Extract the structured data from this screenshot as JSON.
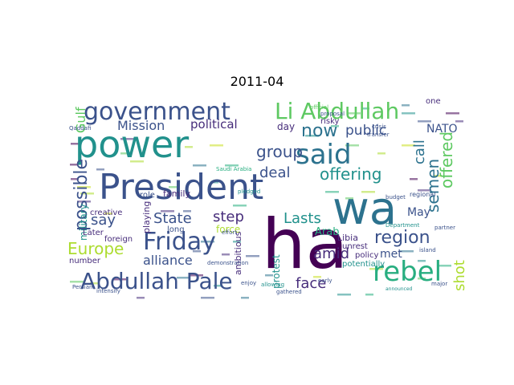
{
  "title": "2011-04",
  "colors": {
    "purple": "#440154",
    "indigo": "#472d7b",
    "navy": "#3b528b",
    "steel": "#2c728e",
    "teal": "#21918c",
    "green": "#28ae80",
    "lime": "#5ec962",
    "yellowgreen": "#addc30",
    "yellow": "#c8e020"
  },
  "words": [
    {
      "t": "power",
      "c": "teal"
    },
    {
      "t": "President",
      "c": "navy"
    },
    {
      "t": "wa",
      "c": "steel"
    },
    {
      "t": "ha",
      "c": "purple"
    },
    {
      "t": "government",
      "c": "navy"
    },
    {
      "t": "Li Abdullah",
      "c": "lime"
    },
    {
      "t": "said",
      "c": "steel"
    },
    {
      "t": "Friday",
      "c": "navy"
    },
    {
      "t": "Abdullah Pale",
      "c": "navy"
    },
    {
      "t": "rebel",
      "c": "green"
    },
    {
      "t": "possible",
      "c": "navy"
    },
    {
      "t": "Mission",
      "c": "navy"
    },
    {
      "t": "political",
      "c": "indigo"
    },
    {
      "t": "now",
      "c": "steel"
    },
    {
      "t": "group",
      "c": "navy"
    },
    {
      "t": "deal",
      "c": "navy"
    },
    {
      "t": "offering",
      "c": "teal"
    },
    {
      "t": "semen",
      "c": "steel"
    },
    {
      "t": "offered",
      "c": "lime"
    },
    {
      "t": "call",
      "c": "steel"
    },
    {
      "t": "Gulf",
      "c": "lime"
    },
    {
      "t": "public",
      "c": "navy"
    },
    {
      "t": "NATO",
      "c": "navy"
    },
    {
      "t": "say",
      "c": "navy"
    },
    {
      "t": "State",
      "c": "navy"
    },
    {
      "t": "step",
      "c": "indigo"
    },
    {
      "t": "Lasts",
      "c": "teal"
    },
    {
      "t": "May",
      "c": "navy"
    },
    {
      "t": "region",
      "c": "navy"
    },
    {
      "t": "Europe",
      "c": "yellowgreen"
    },
    {
      "t": "alliance",
      "c": "navy"
    },
    {
      "t": "amid",
      "c": "indigo"
    },
    {
      "t": "face",
      "c": "indigo"
    },
    {
      "t": "shot",
      "c": "yellowgreen"
    },
    {
      "t": "military",
      "c": "teal"
    },
    {
      "t": "Arab",
      "c": "green"
    },
    {
      "t": "force",
      "c": "yellowgreen"
    },
    {
      "t": "protest",
      "c": "teal"
    },
    {
      "t": "ambitious",
      "c": "indigo"
    },
    {
      "t": "playing",
      "c": "indigo"
    },
    {
      "t": "creative",
      "c": "indigo"
    },
    {
      "t": "family",
      "c": "indigo"
    },
    {
      "t": "role",
      "c": "navy"
    },
    {
      "t": "long",
      "c": "navy"
    },
    {
      "t": "Later",
      "c": "indigo"
    },
    {
      "t": "foreign",
      "c": "indigo"
    },
    {
      "t": "number",
      "c": "indigo"
    },
    {
      "t": "met",
      "c": "navy"
    },
    {
      "t": "policy",
      "c": "indigo"
    },
    {
      "t": "Libia",
      "c": "indigo"
    },
    {
      "t": "unrest",
      "c": "indigo"
    },
    {
      "t": "potentially",
      "c": "teal"
    },
    {
      "t": "risky",
      "c": "indigo"
    },
    {
      "t": "day",
      "c": "indigo"
    },
    {
      "t": "one",
      "c": "indigo"
    },
    {
      "t": "regional",
      "c": "navy"
    },
    {
      "t": "Saudi Arabia",
      "c": "green"
    },
    {
      "t": "Qaddafi",
      "c": "navy"
    },
    {
      "t": "announced",
      "c": "teal"
    },
    {
      "t": "budget",
      "c": "navy"
    },
    {
      "t": "pledged",
      "c": "teal"
    },
    {
      "t": "effort",
      "c": "navy"
    },
    {
      "t": "island",
      "c": "navy"
    },
    {
      "t": "gathered",
      "c": "navy"
    },
    {
      "t": "enjoy",
      "c": "navy"
    },
    {
      "t": "allowing",
      "c": "teal"
    },
    {
      "t": "official",
      "c": "lime"
    },
    {
      "t": "proposal",
      "c": "navy"
    },
    {
      "t": "major",
      "c": "navy"
    },
    {
      "t": "crisis",
      "c": "navy"
    },
    {
      "t": "transfer",
      "c": "navy"
    },
    {
      "t": "demonstration",
      "c": "navy"
    },
    {
      "t": "Persian",
      "c": "navy"
    },
    {
      "t": "intensify",
      "c": "navy"
    },
    {
      "t": "Department",
      "c": "teal"
    },
    {
      "t": "partner",
      "c": "navy"
    },
    {
      "t": "early",
      "c": "navy"
    }
  ]
}
